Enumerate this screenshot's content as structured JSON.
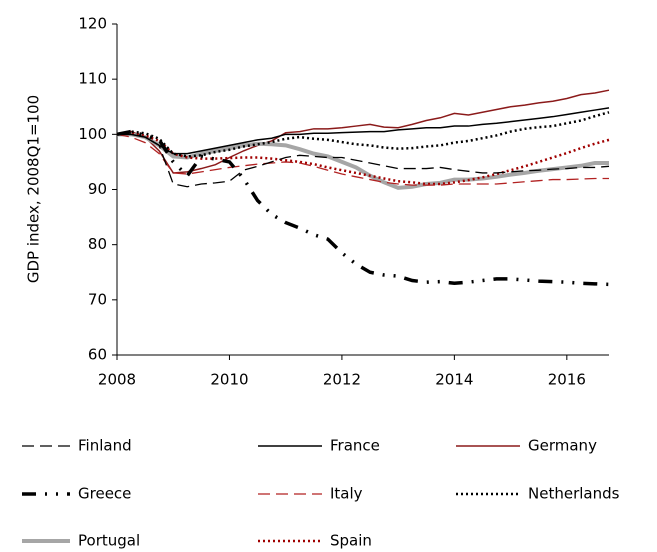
{
  "chart_data": {
    "type": "line",
    "ylabel": "GDP index, 2008Q1=100",
    "x": [
      2008,
      2008.25,
      2008.5,
      2008.75,
      2009,
      2009.25,
      2009.5,
      2009.75,
      2010,
      2010.25,
      2010.5,
      2010.75,
      2011,
      2011.25,
      2011.5,
      2011.75,
      2012,
      2012.25,
      2012.5,
      2012.75,
      2013,
      2013.25,
      2013.5,
      2013.75,
      2014,
      2014.25,
      2014.5,
      2014.75,
      2015,
      2015.25,
      2015.5,
      2015.75,
      2016,
      2016.25,
      2016.5,
      2016.75
    ],
    "xlim": [
      2008,
      2016.75
    ],
    "xticks": [
      2008,
      2010,
      2012,
      2014,
      2016
    ],
    "ylim": [
      60,
      120
    ],
    "yticks": [
      60,
      70,
      80,
      90,
      100,
      110,
      120
    ],
    "grid": false,
    "series": [
      {
        "name": "Finland",
        "color": "#000000",
        "style": "dashed",
        "values": [
          100,
          100,
          99.5,
          98,
          91,
          90.5,
          91,
          91.2,
          91.5,
          93.5,
          94.2,
          95,
          95.8,
          96.2,
          96,
          95.8,
          95.8,
          95.3,
          94.8,
          94.3,
          93.8,
          93.8,
          93.8,
          94,
          93.6,
          93.3,
          93,
          93,
          93.2,
          93.4,
          93.5,
          93.7,
          93.8,
          94,
          94,
          94.2
        ]
      },
      {
        "name": "France",
        "color": "#000000",
        "style": "solid",
        "values": [
          100,
          100,
          99.5,
          98,
          96.5,
          96.5,
          97,
          97.5,
          98,
          98.5,
          99,
          99.3,
          100,
          100,
          100.2,
          100.2,
          100.3,
          100.4,
          100.5,
          100.5,
          100.8,
          101,
          101.2,
          101.2,
          101.5,
          101.5,
          101.8,
          102,
          102.3,
          102.6,
          102.9,
          103.2,
          103.6,
          104,
          104.4,
          104.8
        ]
      },
      {
        "name": "Germany",
        "color": "#8b1a1a",
        "style": "solid",
        "values": [
          100,
          100.5,
          99.5,
          97,
          93,
          93.2,
          93.8,
          94.5,
          95.8,
          97,
          98,
          98.8,
          100.3,
          100.5,
          101,
          101,
          101.2,
          101.5,
          101.8,
          101.3,
          101.2,
          101.8,
          102.5,
          103,
          103.8,
          103.5,
          104,
          104.5,
          105,
          105.3,
          105.7,
          106,
          106.5,
          107.2,
          107.5,
          108
        ]
      },
      {
        "name": "Greece",
        "color": "#000000",
        "style": "dash-dot",
        "values": [
          100,
          100.5,
          99.8,
          99,
          95,
          92.5,
          96,
          95.5,
          95,
          92,
          88,
          85.5,
          84,
          83,
          81.8,
          81,
          78.5,
          76.5,
          75,
          74.5,
          74.3,
          73.5,
          73.2,
          73.3,
          73,
          73.2,
          73.5,
          73.8,
          73.8,
          73.6,
          73.4,
          73.3,
          73.2,
          73,
          72.9,
          72.8
        ]
      },
      {
        "name": "Italy",
        "color": "#b22222",
        "style": "dashed",
        "values": [
          100,
          99.5,
          98.5,
          96.5,
          93,
          92.8,
          93.2,
          93.6,
          94,
          94.3,
          94.6,
          94.8,
          95,
          94.8,
          94.2,
          93.5,
          92.8,
          92.3,
          91.8,
          91.3,
          91,
          90.8,
          90.8,
          90.8,
          91,
          91,
          91,
          91,
          91.2,
          91.4,
          91.6,
          91.8,
          91.8,
          91.9,
          92,
          92
        ]
      },
      {
        "name": "Netherlands",
        "color": "#000000",
        "style": "dotted",
        "values": [
          100,
          100.5,
          100.2,
          99.2,
          96.5,
          96,
          96.2,
          96.8,
          97.2,
          97.8,
          98.2,
          98.6,
          99.2,
          99.5,
          99.2,
          99,
          98.6,
          98.2,
          98,
          97.6,
          97.4,
          97.5,
          97.8,
          98,
          98.5,
          98.8,
          99.3,
          99.8,
          100.5,
          101,
          101.3,
          101.5,
          102,
          102.5,
          103.3,
          104
        ]
      },
      {
        "name": "Portugal",
        "color": "#a6a6a6",
        "style": "thick",
        "values": [
          100,
          100,
          99.5,
          98,
          96,
          95.8,
          96.5,
          97,
          97.5,
          98,
          98.3,
          98.2,
          98,
          97.3,
          96.5,
          96,
          95,
          94,
          92.5,
          91.3,
          90.3,
          90.5,
          91,
          91.2,
          91.8,
          91.8,
          92,
          92.3,
          92.7,
          93,
          93.4,
          93.7,
          94,
          94.3,
          94.8,
          94.8
        ]
      },
      {
        "name": "Spain",
        "color": "#a00000",
        "style": "dotted",
        "values": [
          100,
          100.2,
          99.8,
          98.8,
          96.5,
          95.8,
          95.6,
          95.6,
          95.7,
          95.8,
          95.8,
          95.6,
          95.3,
          95,
          94.6,
          94,
          93.5,
          93,
          92.5,
          92,
          91.5,
          91.3,
          91,
          91,
          91.3,
          91.7,
          92.2,
          92.8,
          93.5,
          94.2,
          95,
          95.8,
          96.6,
          97.5,
          98.3,
          99
        ]
      }
    ]
  }
}
